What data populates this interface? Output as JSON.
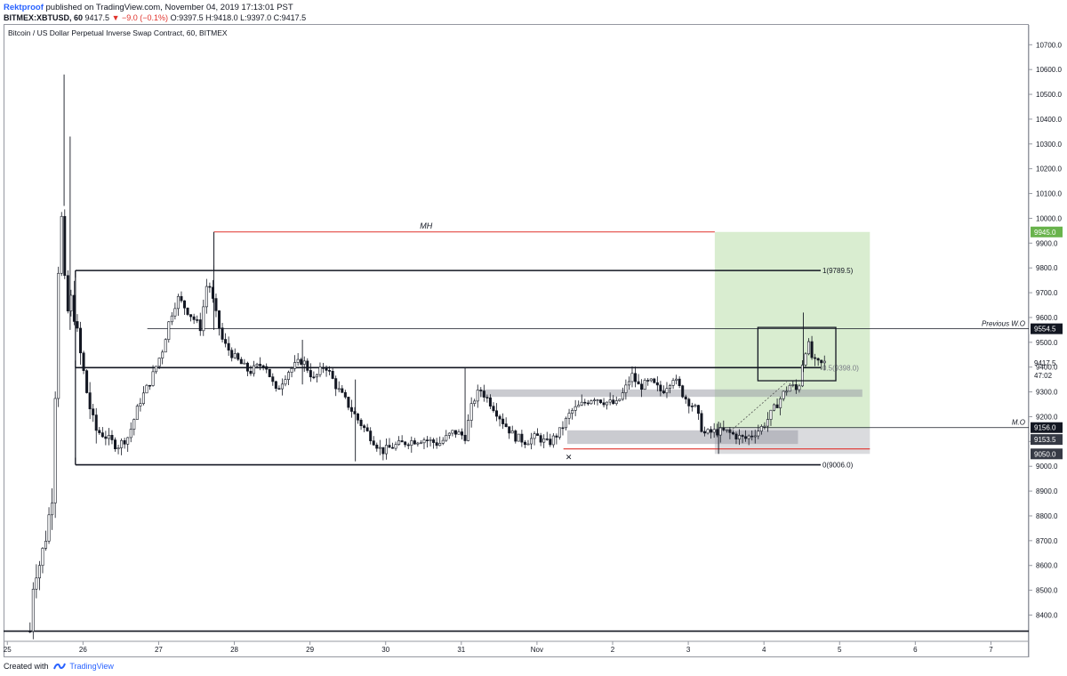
{
  "header": {
    "author": "Rektproof",
    "published": "published on TradingView.com, November 04, 2019 17:13:01 PST",
    "symbol": "BITMEX:XBTUSD, 60",
    "last": "9417.5",
    "change": "−9.0 (−0.1%)",
    "ohlc": "O:9397.5 H:9418.0 L:9397.0 C:9417.5",
    "down_arrow": "▼"
  },
  "footer": {
    "created_with": "Created with",
    "brand": "TradingView"
  },
  "colors": {
    "candle": "#131722",
    "hline": "#131722",
    "red_line": "#e0322b",
    "green_zone": "#b9dfaa",
    "grey_zone": "#9598a1",
    "green_tag": "#69b34c",
    "black_tag": "#131722",
    "dark_tag": "#363a45"
  },
  "chart_data": {
    "type": "candlestick",
    "title": "Bitcoin / US Dollar Perpetual Inverse Swap Contract, 60, BITMEX",
    "ylim": [
      8330,
      10780
    ],
    "y_ticks": [
      8400,
      8500,
      8600,
      8700,
      8800,
      8900,
      9000,
      9100,
      9200,
      9300,
      9400,
      9500,
      9600,
      9700,
      9800,
      9900,
      10000,
      10100,
      10200,
      10300,
      10400,
      10500,
      10600,
      10700
    ],
    "y_tick_labels": [
      "8400.0",
      "8500.0",
      "8600.0",
      "8700.0",
      "8800.0",
      "8900.0",
      "9000.0",
      "9100.0",
      "9200.0",
      "9300.0",
      "9400.0",
      "9500.0",
      "9600.0",
      "9700.0",
      "9800.0",
      "9900.0",
      "10000.0",
      "10100.0",
      "10200.0",
      "10300.0",
      "10400.0",
      "10500.0",
      "10600.0",
      "10700.0"
    ],
    "xlim": [
      -0.05,
      13.5
    ],
    "x_ticks": [
      0,
      1,
      2,
      3,
      4,
      5,
      6,
      7,
      8,
      9,
      10,
      11,
      12,
      13
    ],
    "x_tick_labels": [
      "25",
      "26",
      "27",
      "28",
      "29",
      "30",
      "31",
      "Nov",
      "2",
      "3",
      "4",
      "5",
      "6",
      "7"
    ],
    "price_path": [
      [
        0.3,
        8335
      ],
      [
        0.35,
        8560
      ],
      [
        0.42,
        8600
      ],
      [
        0.5,
        8700
      ],
      [
        0.6,
        8900
      ],
      [
        0.7,
        10100
      ],
      [
        0.78,
        9600
      ],
      [
        0.85,
        9680
      ],
      [
        0.95,
        9480
      ],
      [
        1.05,
        9300
      ],
      [
        1.15,
        9150
      ],
      [
        1.3,
        9120
      ],
      [
        1.45,
        9080
      ],
      [
        1.6,
        9120
      ],
      [
        1.75,
        9260
      ],
      [
        1.9,
        9350
      ],
      [
        2.05,
        9470
      ],
      [
        2.15,
        9600
      ],
      [
        2.25,
        9680
      ],
      [
        2.4,
        9620
      ],
      [
        2.55,
        9560
      ],
      [
        2.65,
        9760
      ],
      [
        2.75,
        9620
      ],
      [
        2.85,
        9500
      ],
      [
        3.0,
        9440
      ],
      [
        3.2,
        9380
      ],
      [
        3.4,
        9420
      ],
      [
        3.55,
        9300
      ],
      [
        3.7,
        9380
      ],
      [
        3.9,
        9430
      ],
      [
        4.05,
        9350
      ],
      [
        4.2,
        9410
      ],
      [
        4.35,
        9320
      ],
      [
        4.5,
        9250
      ],
      [
        4.65,
        9180
      ],
      [
        4.8,
        9120
      ],
      [
        4.95,
        9060
      ],
      [
        5.1,
        9080
      ],
      [
        5.3,
        9100
      ],
      [
        5.5,
        9110
      ],
      [
        5.7,
        9090
      ],
      [
        5.9,
        9140
      ],
      [
        6.05,
        9120
      ],
      [
        6.15,
        9260
      ],
      [
        6.25,
        9310
      ],
      [
        6.4,
        9250
      ],
      [
        6.55,
        9180
      ],
      [
        6.7,
        9120
      ],
      [
        6.85,
        9100
      ],
      [
        7.0,
        9120
      ],
      [
        7.15,
        9090
      ],
      [
        7.3,
        9140
      ],
      [
        7.45,
        9220
      ],
      [
        7.6,
        9250
      ],
      [
        7.75,
        9280
      ],
      [
        7.9,
        9260
      ],
      [
        8.05,
        9250
      ],
      [
        8.15,
        9300
      ],
      [
        8.25,
        9370
      ],
      [
        8.35,
        9320
      ],
      [
        8.5,
        9340
      ],
      [
        8.65,
        9300
      ],
      [
        8.8,
        9360
      ],
      [
        8.95,
        9280
      ],
      [
        9.1,
        9230
      ],
      [
        9.2,
        9130
      ],
      [
        9.35,
        9140
      ],
      [
        9.5,
        9140
      ],
      [
        9.65,
        9120
      ],
      [
        9.75,
        9110
      ],
      [
        9.85,
        9130
      ],
      [
        9.95,
        9150
      ],
      [
        10.05,
        9190
      ],
      [
        10.15,
        9240
      ],
      [
        10.25,
        9290
      ],
      [
        10.35,
        9330
      ],
      [
        10.45,
        9300
      ],
      [
        10.52,
        9440
      ],
      [
        10.58,
        9500
      ],
      [
        10.65,
        9420
      ],
      [
        10.75,
        9410
      ],
      [
        10.8,
        9417.5
      ]
    ],
    "wick_spikes": [
      {
        "x": 0.75,
        "high": 10580,
        "low": 10050
      },
      {
        "x": 0.83,
        "high": 10330,
        "low": 9550
      },
      {
        "x": 2.73,
        "high": 9810,
        "low": 9550
      },
      {
        "x": 3.9,
        "high": 9510,
        "low": 9330
      },
      {
        "x": 4.6,
        "high": 9350,
        "low": 9020
      },
      {
        "x": 6.05,
        "high": 9400,
        "low": 9110
      },
      {
        "x": 9.4,
        "high": 9180,
        "low": 9050
      },
      {
        "x": 10.52,
        "high": 9620,
        "low": 9380
      }
    ],
    "levels": [
      {
        "label": "1(9789.5)",
        "price": 9789.5,
        "x0": 0.9,
        "x1": 10.75,
        "weight": "bold"
      },
      {
        "label": "0(9006.0)",
        "price": 9006.0,
        "x0": 0.9,
        "x1": 10.75,
        "weight": "bold"
      },
      {
        "label": "0.5(9398.0)",
        "price": 9398.0,
        "x0": 0.9,
        "x1": 10.75,
        "weight": "bold"
      },
      {
        "label": "Previous W.O",
        "price": 9554.5,
        "x0": 1.85,
        "x1": 13.5,
        "weight": "thin"
      },
      {
        "label": "M.O",
        "price": 9156.0,
        "x0": 9.4,
        "x1": 13.5,
        "weight": "thin"
      }
    ],
    "mh": {
      "label": "MH",
      "price": 9945.0,
      "x0": 2.73,
      "x1": 9.35
    },
    "bottom_line": {
      "price": 8335
    },
    "red_stop": {
      "price": 9070,
      "x0": 7.35,
      "x1": 11.4
    },
    "green_zone": {
      "x0": 9.35,
      "x1": 11.4,
      "y0": 9153.5,
      "y1": 9945.0
    },
    "grey_zone": {
      "x0": 9.35,
      "x1": 11.4,
      "y0": 9050.0,
      "y1": 9153.5
    },
    "supply_zones": [
      {
        "x0": 6.25,
        "x1": 11.3,
        "y0": 9280,
        "y1": 9310
      },
      {
        "x0": 7.4,
        "x1": 10.45,
        "y0": 9090,
        "y1": 9145
      }
    ],
    "box": {
      "x0": 9.92,
      "x1": 10.95,
      "y0": 9345,
      "y1": 9560
    },
    "cross_mark": {
      "x": 7.42,
      "price": 9040,
      "label": "✕"
    },
    "price_tags": [
      {
        "label": "9945.0",
        "price": 9945.0,
        "style": "green"
      },
      {
        "label": "9554.5",
        "price": 9554.5,
        "style": "black"
      },
      {
        "label": "9417.5",
        "price": 9417.5,
        "style": "plain"
      },
      {
        "label": "47:02",
        "price": 9367.0,
        "style": "plain"
      },
      {
        "label": "9156.0",
        "price": 9156.0,
        "style": "black"
      },
      {
        "label": "9153.5",
        "price": 9108.0,
        "style": "dark"
      },
      {
        "label": "9050.0",
        "price": 9050.0,
        "style": "dark"
      }
    ]
  }
}
